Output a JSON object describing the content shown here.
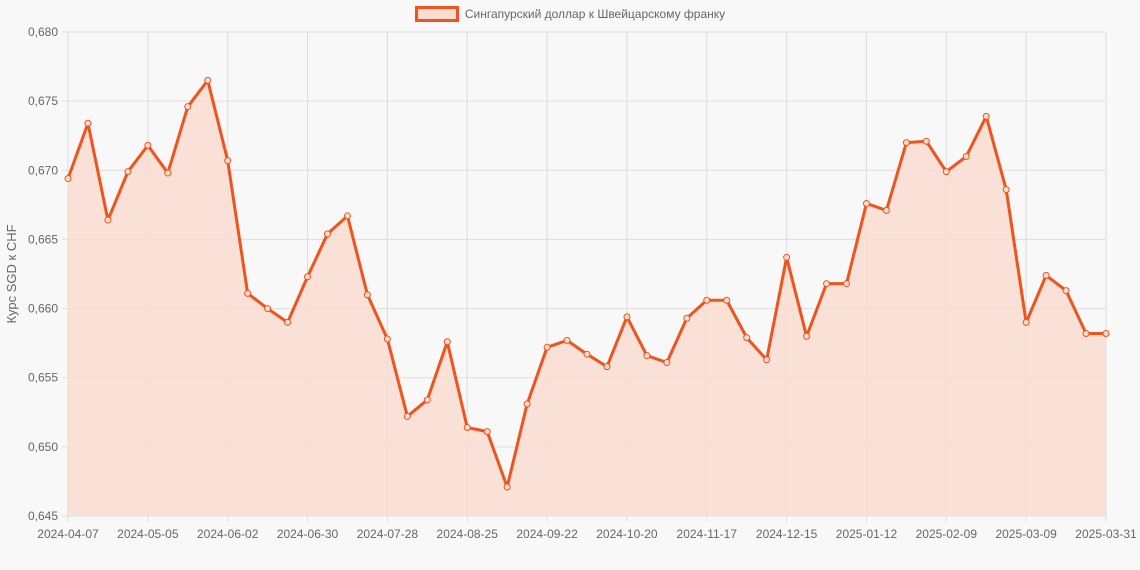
{
  "chart_data": {
    "type": "area",
    "title": "",
    "legend": [
      "Сингапурский доллар к Швейцарскому франку"
    ],
    "legend_position": "top",
    "xlabel": "",
    "ylabel": "Курс SGD к CHF",
    "ylim": [
      0.645,
      0.68
    ],
    "y_ticks": [
      "0,645",
      "0,650",
      "0,655",
      "0,660",
      "0,665",
      "0,670",
      "0,675",
      "0,680"
    ],
    "x_tick_labels": [
      "2024-04-07",
      "2024-05-05",
      "2024-06-02",
      "2024-06-30",
      "2024-07-28",
      "2024-08-25",
      "2024-09-22",
      "2024-10-20",
      "2024-11-17",
      "2024-12-15",
      "2025-01-12",
      "2025-02-09",
      "2025-03-09",
      "2025-03-31"
    ],
    "grid": true,
    "colors": {
      "line": "#f0531c",
      "fill": "#f9ddd1",
      "grid": "#dddddd",
      "text": "#666666",
      "background": "#f8f8f8"
    },
    "series": [
      {
        "name": "Сингапурский доллар к Швейцарскому франку",
        "values": [
          0.6694,
          0.6734,
          0.6664,
          0.6699,
          0.6718,
          0.6698,
          0.6746,
          0.6765,
          0.6707,
          0.6611,
          0.66,
          0.659,
          0.6623,
          0.6654,
          0.6667,
          0.661,
          0.6578,
          0.6522,
          0.6534,
          0.6576,
          0.6514,
          0.6511,
          0.6471,
          0.6531,
          0.6572,
          0.6577,
          0.6567,
          0.6558,
          0.6594,
          0.6566,
          0.6561,
          0.6593,
          0.6606,
          0.6606,
          0.6579,
          0.6563,
          0.6637,
          0.658,
          0.6618,
          0.6618,
          0.6676,
          0.6671,
          0.672,
          0.6721,
          0.6699,
          0.671,
          0.6739,
          0.6686,
          0.659,
          0.6624,
          0.6613,
          0.6582,
          0.6582
        ]
      }
    ]
  },
  "legend": {
    "label": "Сингапурский доллар к Швейцарскому франку"
  },
  "axes": {
    "ylabel": "Курс SGD к CHF"
  }
}
